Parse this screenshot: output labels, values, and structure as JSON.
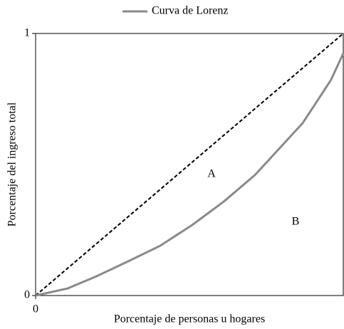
{
  "chart_data": {
    "type": "line",
    "x_label": "Porcentaje de personas u hogares",
    "y_label": "Porcentaje del ingreso total",
    "xlim": [
      0,
      1
    ],
    "ylim": [
      0,
      1
    ],
    "xticks": [
      0
    ],
    "yticks": [
      0,
      1
    ],
    "x": [
      0,
      0.104,
      0.197,
      0.3,
      0.405,
      0.51,
      0.613,
      0.713,
      0.81,
      0.868,
      0.914,
      0.96,
      1
    ],
    "series": [
      {
        "name": "Curva de Lorenz",
        "color": "#8a8a8a",
        "values": [
          0,
          0.027,
          0.073,
          0.13,
          0.19,
          0.27,
          0.36,
          0.46,
          0.584,
          0.658,
          0.74,
          0.823,
          0.924
        ]
      }
    ],
    "equality_line": {
      "x": [
        0,
        1
      ],
      "values": [
        0,
        1
      ],
      "color": "#000000",
      "dashed": true
    },
    "annotations": [
      "A",
      "B"
    ],
    "legend": "top"
  }
}
